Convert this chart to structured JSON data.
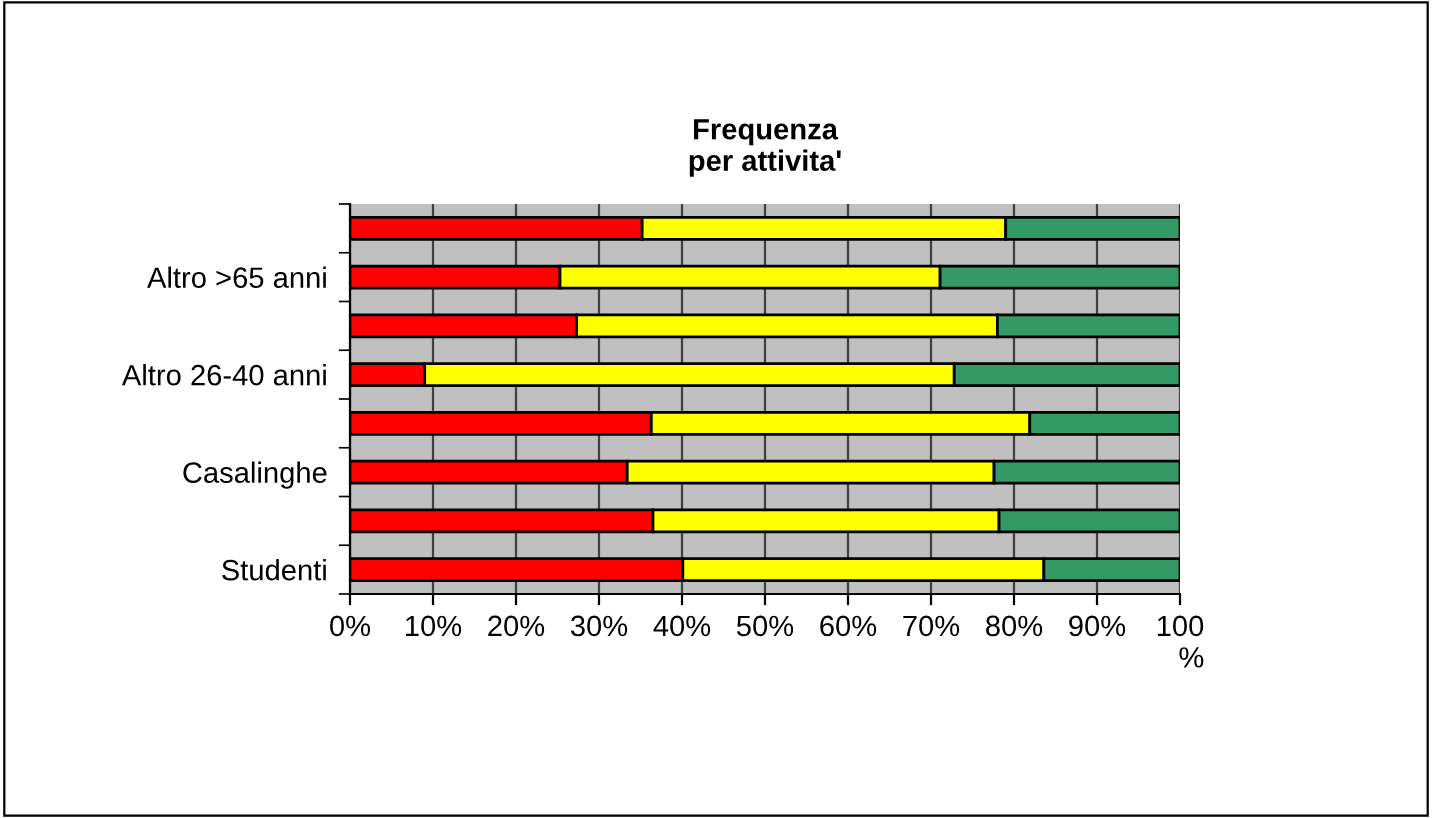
{
  "chart_data": {
    "type": "bar",
    "orientation": "horizontal",
    "stacked": true,
    "title": "Frequenza\nper attivita'",
    "categories": [
      null,
      "Altro >65 anni",
      null,
      "Altro 26-40 anni",
      null,
      "Casalinghe",
      null,
      "Studenti"
    ],
    "series": [
      {
        "color": "#ff0000",
        "values": [
          35.2,
          25.3,
          27.3,
          9.0,
          36.3,
          33.4,
          36.5,
          40.1
        ]
      },
      {
        "color": "#ffff00",
        "values": [
          43.8,
          45.8,
          50.7,
          63.8,
          45.6,
          44.2,
          41.7,
          43.5
        ]
      },
      {
        "color": "#339966",
        "values": [
          21.0,
          28.9,
          22.0,
          27.2,
          18.1,
          22.4,
          21.8,
          16.4
        ]
      }
    ],
    "xlim": [
      0,
      100
    ],
    "xticks": [
      {
        "value": 0,
        "label": "0%"
      },
      {
        "value": 10,
        "label": "10%"
      },
      {
        "value": 20,
        "label": "20%"
      },
      {
        "value": 30,
        "label": "30%"
      },
      {
        "value": 40,
        "label": "40%"
      },
      {
        "value": 50,
        "label": "50%"
      },
      {
        "value": 60,
        "label": "60%"
      },
      {
        "value": 70,
        "label": "70%"
      },
      {
        "value": 80,
        "label": "80%"
      },
      {
        "value": 90,
        "label": "90%"
      },
      {
        "value": 100,
        "label": "100\n%"
      }
    ],
    "grid": "x",
    "legend": false
  }
}
